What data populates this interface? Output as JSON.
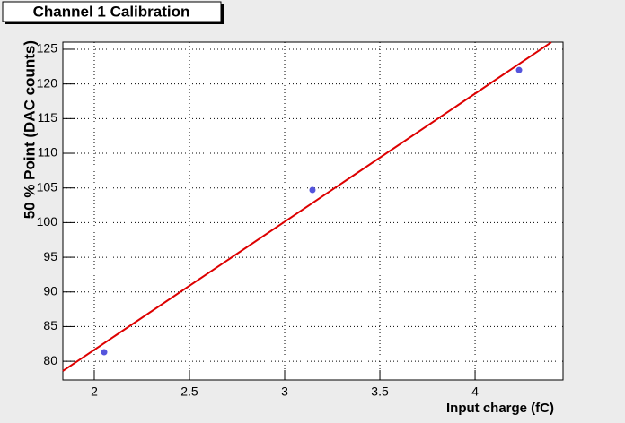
{
  "chart_data": {
    "type": "scatter",
    "title": "Channel 1 Calibration",
    "x_label": "Input charge (fC)",
    "y_label": "50 % Point (DAC counts)",
    "x": [
      2.052,
      3.146,
      4.231
    ],
    "values": [
      81.3,
      104.7,
      122.0
    ],
    "color": "#5555dd",
    "fit": {
      "x": [
        1.835,
        4.4
      ],
      "values": [
        78.6,
        126
      ],
      "color": "#dd0000"
    },
    "xlim": [
      1.835,
      4.462
    ],
    "ylim": [
      77.3,
      126.03
    ],
    "xticks": [
      2,
      2.5,
      3,
      3.5,
      4
    ],
    "yticks": [
      80,
      85,
      90,
      95,
      100,
      105,
      110,
      115,
      120,
      125
    ],
    "grid": true
  }
}
